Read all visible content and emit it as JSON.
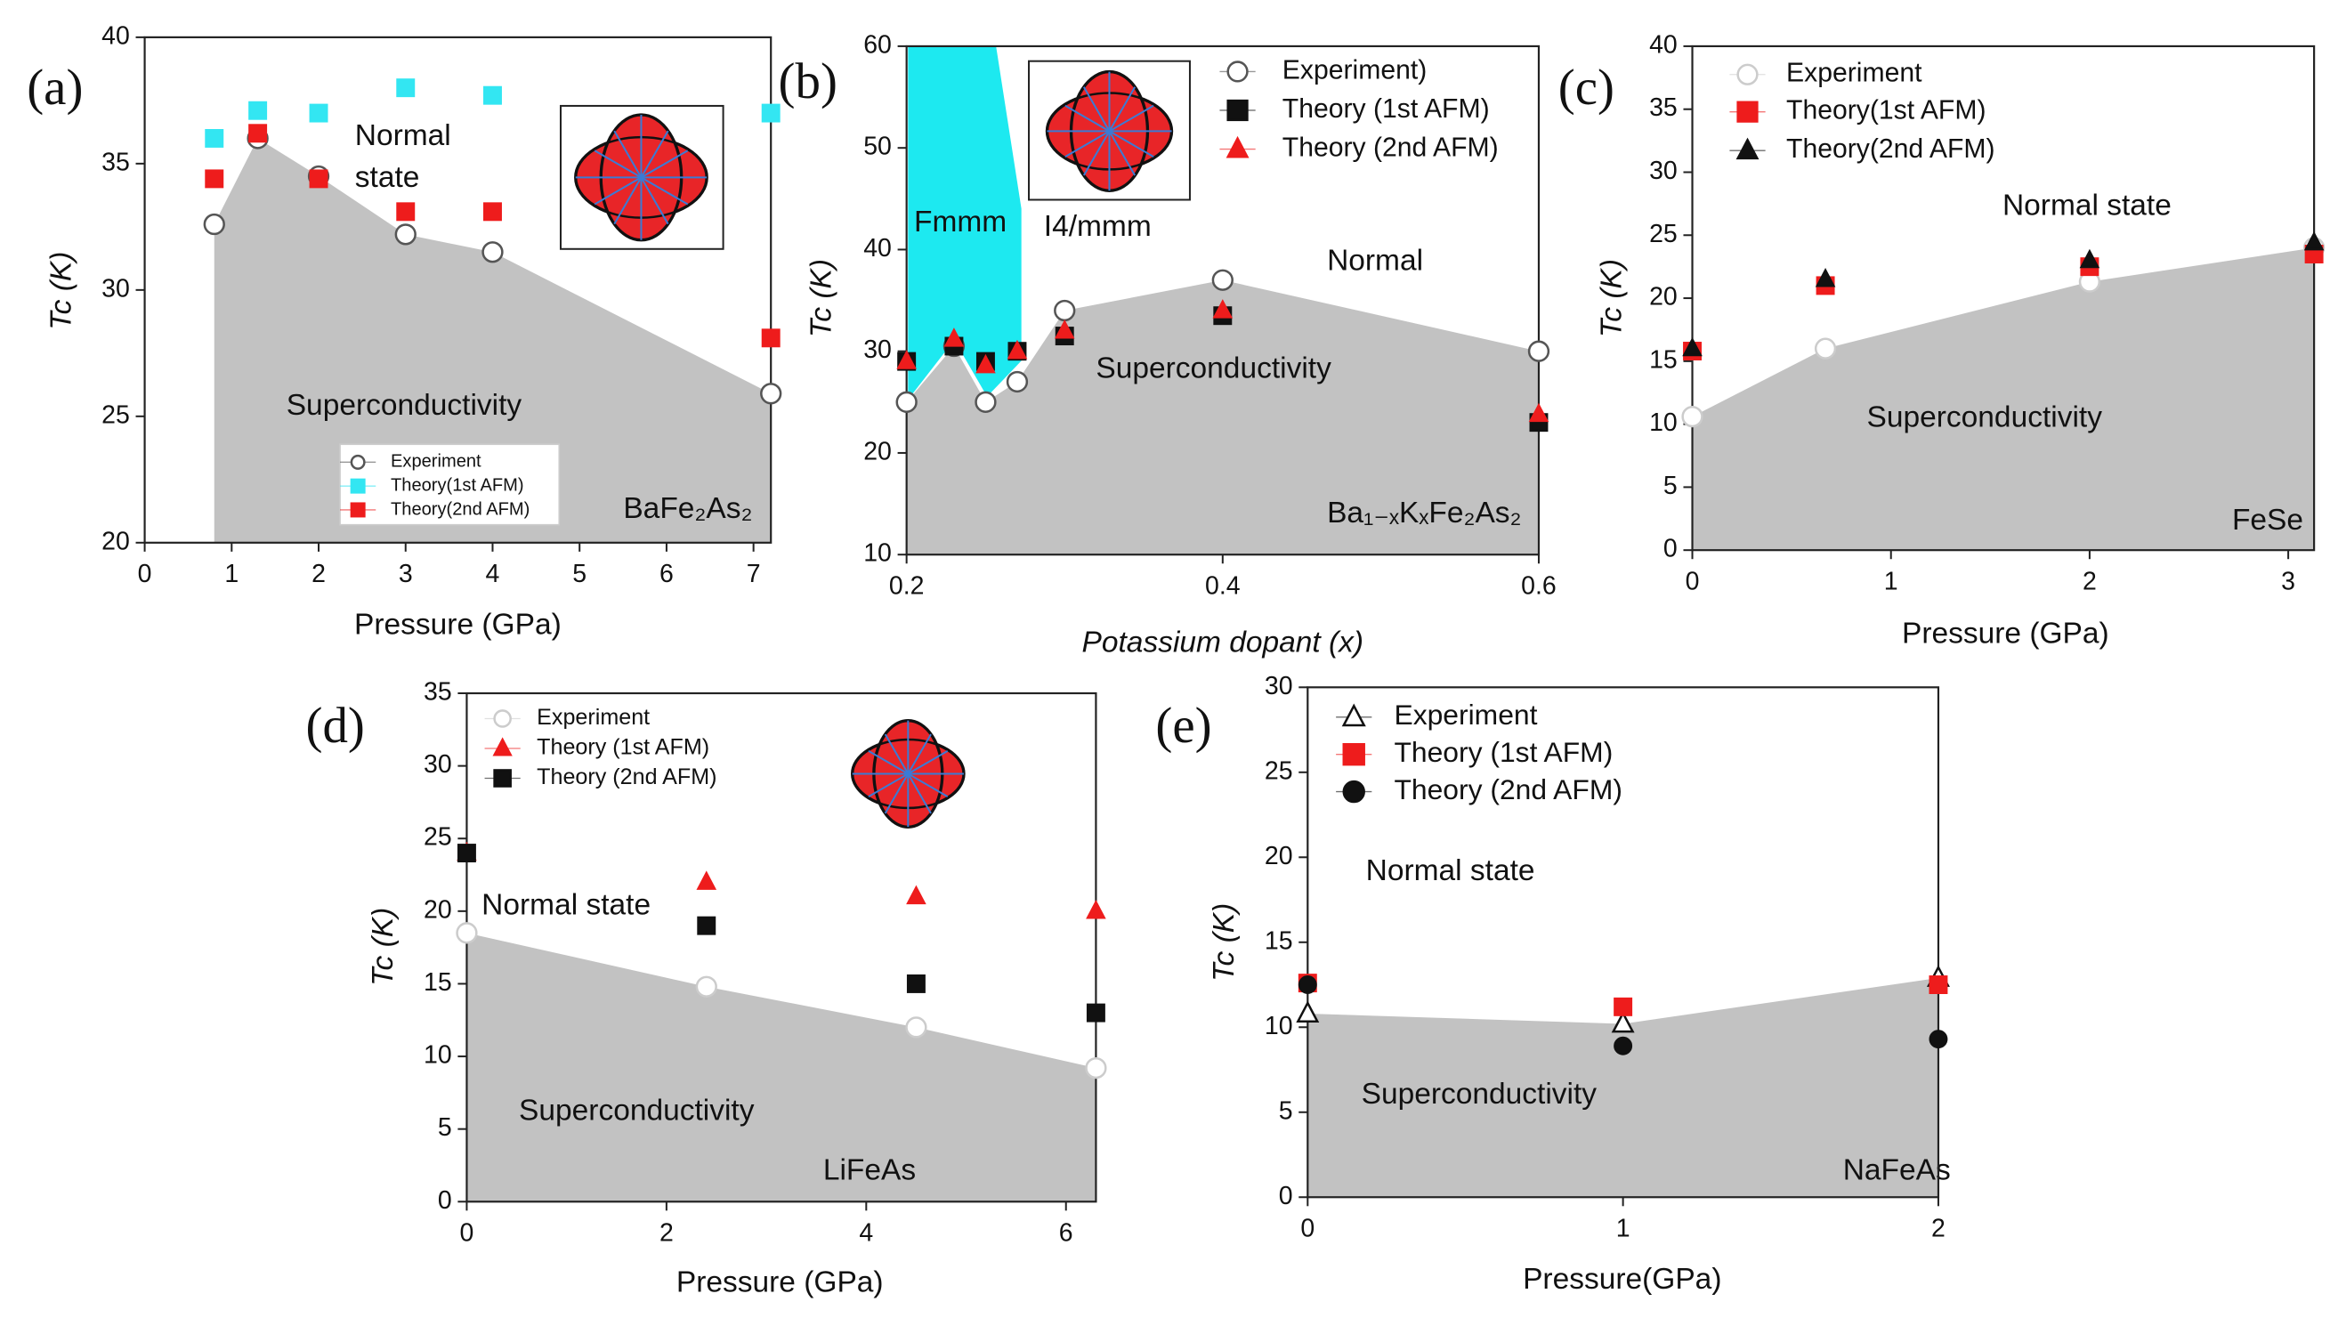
{
  "chart_data": [
    {
      "type": "scatter",
      "panel_label": "(a)",
      "x_label": "Pressure (GPa)",
      "y_label": "Tc (K)",
      "x": [
        0.8,
        1.3,
        2,
        3,
        4,
        7.2
      ],
      "series": [
        {
          "name": "Experiment",
          "marker": "circle",
          "color": "#ffffff",
          "edgecolor": "#555555",
          "values": [
            32.6,
            36,
            34.5,
            32.2,
            31.5,
            25.9
          ]
        },
        {
          "name": "Theory(1st AFM)",
          "marker": "square",
          "color": "#33e6f2",
          "edgecolor": "#33e6f2",
          "values": [
            36,
            37.1,
            37,
            38,
            37.7,
            37
          ]
        },
        {
          "name": "Theory(2nd AFM)",
          "marker": "square",
          "color": "#ee1c1c",
          "edgecolor": "#ee1c1c",
          "values": [
            34.4,
            36.2,
            34.4,
            33.1,
            33.1,
            28.1
          ]
        }
      ],
      "annotations": [
        "Normal",
        "state",
        "Superconductivity",
        "BaFe₂As₂"
      ],
      "xlim": [
        0,
        7.2
      ],
      "xticks": [
        0,
        1,
        2,
        3,
        4,
        5,
        6,
        7
      ],
      "ylim": [
        20,
        40
      ],
      "yticks": [
        20,
        25,
        30,
        35,
        40
      ]
    },
    {
      "type": "scatter",
      "panel_label": "(b)",
      "x_label": "Potassium dopant (x)",
      "y_label": "Tc (K)",
      "x": [
        0.2,
        0.23,
        0.25,
        0.27,
        0.3,
        0.4,
        0.6
      ],
      "series": [
        {
          "name": "Experiment)",
          "marker": "circle",
          "color": "#ffffff",
          "edgecolor": "#555555",
          "values": [
            25,
            30.5,
            25,
            27,
            34,
            37,
            30
          ]
        },
        {
          "name": "Theory (1st AFM)",
          "marker": "square",
          "color": "#111111",
          "edgecolor": "#111111",
          "values": [
            29,
            30.5,
            29,
            30,
            31.5,
            33.5,
            23
          ]
        },
        {
          "name": "Theory (2nd AFM)",
          "marker": "triangle",
          "color": "#ee1c1c",
          "edgecolor": "#ee1c1c",
          "values": [
            29,
            31.2,
            28.6,
            30,
            32,
            34,
            23.8
          ]
        }
      ],
      "annotations": [
        "Fmmm",
        "I4/mmm",
        "Normal",
        "Superconductivity",
        "Ba₁₋ₓKₓFe₂As₂"
      ],
      "xlim": [
        0.2,
        0.6
      ],
      "xticks": [
        0.2,
        0.4,
        0.6
      ],
      "ylim": [
        10,
        60
      ],
      "yticks": [
        10,
        20,
        30,
        40,
        50,
        60
      ]
    },
    {
      "type": "scatter",
      "panel_label": "(c)",
      "x_label": "Pressure (GPa)",
      "y_label": "Tc (K)",
      "x": [
        0,
        0.67,
        2,
        3.15
      ],
      "series": [
        {
          "name": "Experiment",
          "marker": "circle",
          "color": "#ffffff",
          "edgecolor": "#cccccc",
          "values": [
            10.6,
            16,
            21.3,
            24
          ]
        },
        {
          "name": "Theory(1st AFM)",
          "marker": "square",
          "color": "#ee1c1c",
          "edgecolor": "#ee1c1c",
          "values": [
            15.8,
            21,
            22.5,
            23.5
          ]
        },
        {
          "name": "Theory(2nd AFM)",
          "marker": "triangle",
          "color": "#111111",
          "edgecolor": "#111111",
          "values": [
            16,
            21.5,
            23,
            24.4
          ]
        }
      ],
      "annotations": [
        "Normal state",
        "Superconductivity",
        "FeSe"
      ],
      "xlim": [
        0,
        3.13
      ],
      "xticks": [
        0,
        1,
        2,
        3
      ],
      "ylim": [
        0,
        40
      ],
      "yticks": [
        0,
        5,
        10,
        15,
        20,
        25,
        30,
        35,
        40
      ]
    },
    {
      "type": "scatter",
      "panel_label": "(d)",
      "x_label": "Pressure (GPa)",
      "y_label": "Tc (K)",
      "x": [
        0,
        2.4,
        4.5,
        6.3
      ],
      "series": [
        {
          "name": "Experiment",
          "marker": "circle",
          "color": "#ffffff",
          "edgecolor": "#cccccc",
          "values": [
            18.5,
            14.8,
            12,
            9.2
          ]
        },
        {
          "name": "Theory (1st AFM)",
          "marker": "triangle",
          "color": "#ee1c1c",
          "edgecolor": "#ee1c1c",
          "values": [
            24,
            22,
            21,
            20
          ]
        },
        {
          "name": "Theory (2nd AFM)",
          "marker": "square",
          "color": "#111111",
          "edgecolor": "#111111",
          "values": [
            24,
            19,
            15,
            13
          ]
        }
      ],
      "annotations": [
        "Normal state",
        "Superconductivity",
        "LiFeAs"
      ],
      "xlim": [
        0,
        6.3
      ],
      "xticks": [
        0,
        2,
        4,
        6
      ],
      "ylim": [
        0,
        35
      ],
      "yticks": [
        0,
        5,
        10,
        15,
        20,
        25,
        30,
        35
      ]
    },
    {
      "type": "scatter",
      "panel_label": "(e)",
      "x_label": "Pressure(GPa)",
      "y_label": "Tc (K)",
      "x": [
        0,
        1,
        2
      ],
      "series": [
        {
          "name": "Experiment",
          "marker": "triangle",
          "color": "#ffffff",
          "edgecolor": "#111111",
          "values": [
            10.8,
            10.2,
            12.9
          ]
        },
        {
          "name": "Theory (1st AFM)",
          "marker": "square",
          "color": "#ee1c1c",
          "edgecolor": "#ee1c1c",
          "values": [
            12.6,
            11.2,
            12.5
          ]
        },
        {
          "name": "Theory (2nd AFM)",
          "marker": "circle",
          "color": "#111111",
          "edgecolor": "#111111",
          "values": [
            12.5,
            8.9,
            9.3
          ]
        }
      ],
      "annotations": [
        "Normal state",
        "Superconductivity",
        "NaFeAs"
      ],
      "xlim": [
        0,
        2
      ],
      "xticks": [
        0,
        1,
        2
      ],
      "ylim": [
        0,
        30
      ],
      "yticks": [
        0,
        5,
        10,
        15,
        20,
        25,
        30
      ]
    }
  ]
}
